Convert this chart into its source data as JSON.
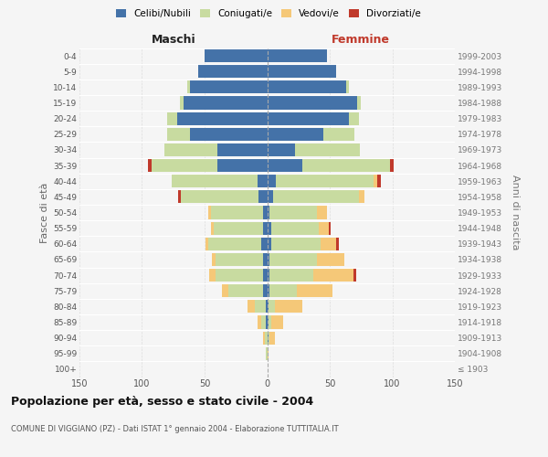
{
  "age_groups": [
    "100+",
    "95-99",
    "90-94",
    "85-89",
    "80-84",
    "75-79",
    "70-74",
    "65-69",
    "60-64",
    "55-59",
    "50-54",
    "45-49",
    "40-44",
    "35-39",
    "30-34",
    "25-29",
    "20-24",
    "15-19",
    "10-14",
    "5-9",
    "0-4"
  ],
  "birth_years": [
    "≤ 1903",
    "1904-1908",
    "1909-1913",
    "1914-1918",
    "1919-1923",
    "1924-1928",
    "1929-1933",
    "1934-1938",
    "1939-1943",
    "1944-1948",
    "1949-1953",
    "1954-1958",
    "1959-1963",
    "1964-1968",
    "1969-1973",
    "1974-1978",
    "1979-1983",
    "1984-1988",
    "1989-1993",
    "1994-1998",
    "1999-2003"
  ],
  "maschi_celibi": [
    0,
    0,
    0,
    1,
    1,
    3,
    3,
    3,
    5,
    3,
    3,
    7,
    8,
    40,
    40,
    62,
    72,
    67,
    62,
    55,
    50
  ],
  "maschi_coniugati": [
    0,
    1,
    2,
    4,
    9,
    28,
    38,
    38,
    42,
    40,
    42,
    62,
    68,
    52,
    42,
    18,
    8,
    3,
    2,
    0,
    0
  ],
  "maschi_vedovi": [
    0,
    0,
    1,
    3,
    6,
    5,
    5,
    3,
    2,
    2,
    2,
    0,
    0,
    0,
    0,
    0,
    0,
    0,
    0,
    0,
    0
  ],
  "maschi_divorziati": [
    0,
    0,
    0,
    0,
    0,
    0,
    0,
    0,
    0,
    0,
    0,
    2,
    0,
    3,
    0,
    0,
    0,
    0,
    0,
    0,
    0
  ],
  "femmine_nubili": [
    0,
    0,
    1,
    1,
    1,
    2,
    2,
    2,
    3,
    3,
    2,
    5,
    7,
    28,
    22,
    45,
    65,
    72,
    63,
    55,
    48
  ],
  "femmine_coniugate": [
    0,
    0,
    1,
    2,
    5,
    22,
    35,
    38,
    40,
    38,
    38,
    68,
    78,
    70,
    52,
    25,
    8,
    3,
    2,
    0,
    0
  ],
  "femmine_vedove": [
    0,
    1,
    4,
    10,
    22,
    28,
    32,
    22,
    12,
    8,
    8,
    5,
    3,
    0,
    0,
    0,
    0,
    0,
    0,
    0,
    0
  ],
  "femmine_divorziate": [
    0,
    0,
    0,
    0,
    0,
    0,
    2,
    0,
    2,
    2,
    0,
    0,
    3,
    3,
    0,
    0,
    0,
    0,
    0,
    0,
    0
  ],
  "color_celibi": "#4472a8",
  "color_coniugati": "#c8dba0",
  "color_vedovi": "#f5c878",
  "color_divorziati": "#c0392b",
  "xlim": 150,
  "title": "Popolazione per età, sesso e stato civile - 2004",
  "subtitle": "COMUNE DI VIGGIANO (PZ) - Dati ISTAT 1° gennaio 2004 - Elaborazione TUTTITALIA.IT",
  "ylabel_left": "Fasce di età",
  "ylabel_right": "Anni di nascita",
  "label_maschi": "Maschi",
  "label_femmine": "Femmine",
  "legend_labels": [
    "Celibi/Nubili",
    "Coniugati/e",
    "Vedovi/e",
    "Divorziati/e"
  ],
  "bg_color": "#f5f5f5",
  "grid_color": "#dddddd",
  "xticks": [
    -150,
    -100,
    -50,
    0,
    50,
    100,
    150
  ],
  "xticklabels": [
    "150",
    "100",
    "50",
    "0",
    "50",
    "100",
    "150"
  ]
}
